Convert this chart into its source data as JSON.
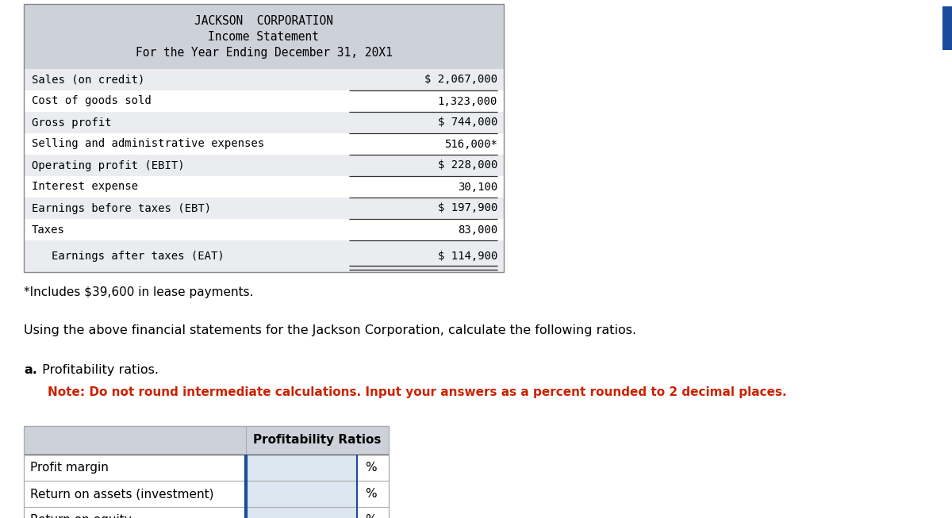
{
  "title1": "JACKSON  CORPORATION",
  "title2": "Income Statement",
  "title3": "For the Year Ending December 31, 20X1",
  "income_rows": [
    {
      "label": "Sales (on credit)",
      "value": "$ 2,067,000",
      "has_top_line": false,
      "double_underline": false,
      "indent": false
    },
    {
      "label": "Cost of goods sold",
      "value": "1,323,000",
      "has_top_line": true,
      "double_underline": false,
      "indent": false
    },
    {
      "label": "Gross profit",
      "value": "$ 744,000",
      "has_top_line": true,
      "double_underline": false,
      "indent": false
    },
    {
      "label": "Selling and administrative expenses",
      "value": "516,000*",
      "has_top_line": true,
      "double_underline": false,
      "indent": false
    },
    {
      "label": "Operating profit (EBIT)",
      "value": "$ 228,000",
      "has_top_line": true,
      "double_underline": false,
      "indent": false
    },
    {
      "label": "Interest expense",
      "value": "30,100",
      "has_top_line": true,
      "double_underline": false,
      "indent": false
    },
    {
      "label": "Earnings before taxes (EBT)",
      "value": "$ 197,900",
      "has_top_line": true,
      "double_underline": false,
      "indent": false
    },
    {
      "label": "Taxes",
      "value": "83,000",
      "has_top_line": true,
      "double_underline": false,
      "indent": false
    },
    {
      "label": "Earnings after taxes (EAT)",
      "value": "$ 114,900",
      "has_top_line": true,
      "double_underline": true,
      "indent": true
    }
  ],
  "footnote": "*Includes $39,600 in lease payments.",
  "instruction": "Using the above financial statements for the Jackson Corporation, calculate the following ratios.",
  "section_a": "a.",
  "section_label": " Profitability ratios.",
  "note_text": "Note: Do not round intermediate calculations. Input your answers as a percent rounded to 2 decimal places.",
  "table_header": "Profitability Ratios",
  "table_rows": [
    "Profit margin",
    "Return on assets (investment)",
    "Return on equity"
  ],
  "bg_header": "#cdd1da",
  "bg_white": "#ffffff",
  "bg_input": "#dce6f1",
  "border_dark": "#666666",
  "border_light": "#aaaaaa",
  "note_color": "#cc2200",
  "blue_accent": "#1a4b9b",
  "page_bg": "#ffffff",
  "mono_font": "DejaVu Sans Mono",
  "sans_font": "DejaVu Sans"
}
